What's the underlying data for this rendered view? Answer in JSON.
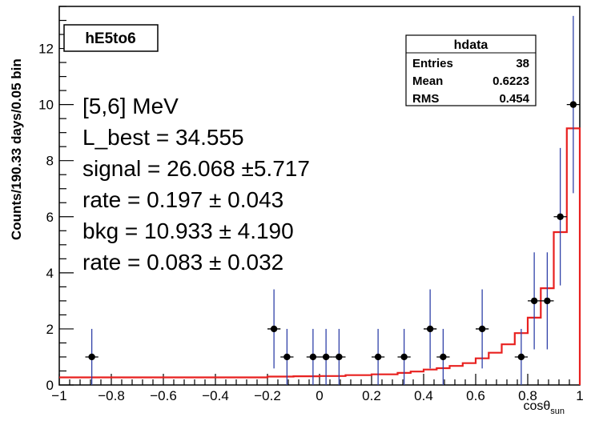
{
  "chart_data": {
    "type": "histogram-with-errorbars",
    "title": "hE5to6",
    "ylabel": "Counts/190.33 days/0.05 bin",
    "xlabel_main": "cosθ",
    "xlabel_sub": "sun",
    "xlim": [
      -1,
      1
    ],
    "ylim": [
      0,
      13.5
    ],
    "x_ticks": [
      -1,
      -0.8,
      -0.6,
      -0.4,
      -0.2,
      0,
      0.2,
      0.4,
      0.6,
      0.8,
      1
    ],
    "x_tick_labels": [
      "−1",
      "−0.8",
      "−0.6",
      "−0.4",
      "−0.2",
      "0",
      "0.2",
      "0.4",
      "0.6",
      "0.8",
      "1"
    ],
    "y_ticks": [
      0,
      2,
      4,
      6,
      8,
      10,
      12
    ],
    "y_tick_labels": [
      "0",
      "2",
      "4",
      "6",
      "8",
      "10",
      "12"
    ],
    "bin_width": 0.05,
    "data_points": [
      {
        "x": -0.875,
        "y": 1,
        "err_low": 1,
        "err_high": 1.0
      },
      {
        "x": -0.175,
        "y": 2,
        "err_low": 1.41,
        "err_high": 1.41
      },
      {
        "x": -0.125,
        "y": 1,
        "err_low": 1,
        "err_high": 1.0
      },
      {
        "x": -0.025,
        "y": 1,
        "err_low": 1,
        "err_high": 1.0
      },
      {
        "x": 0.025,
        "y": 1,
        "err_low": 1,
        "err_high": 1.0
      },
      {
        "x": 0.075,
        "y": 1,
        "err_low": 1,
        "err_high": 1.0
      },
      {
        "x": 0.225,
        "y": 1,
        "err_low": 1,
        "err_high": 1.0
      },
      {
        "x": 0.325,
        "y": 1,
        "err_low": 1,
        "err_high": 1.0
      },
      {
        "x": 0.425,
        "y": 2,
        "err_low": 1.41,
        "err_high": 1.41
      },
      {
        "x": 0.475,
        "y": 1,
        "err_low": 1,
        "err_high": 1.0
      },
      {
        "x": 0.625,
        "y": 2,
        "err_low": 1.41,
        "err_high": 1.41
      },
      {
        "x": 0.775,
        "y": 1,
        "err_low": 1,
        "err_high": 1.0
      },
      {
        "x": 0.825,
        "y": 3,
        "err_low": 1.73,
        "err_high": 1.73
      },
      {
        "x": 0.875,
        "y": 3,
        "err_low": 1.73,
        "err_high": 1.73
      },
      {
        "x": 0.925,
        "y": 6,
        "err_low": 2.45,
        "err_high": 2.45
      },
      {
        "x": 0.975,
        "y": 10,
        "err_low": 3.16,
        "err_high": 3.16
      }
    ],
    "fit_histogram": {
      "edges": [
        -1,
        -0.2,
        -0.1,
        0.0,
        0.1,
        0.2,
        0.3,
        0.35,
        0.4,
        0.45,
        0.5,
        0.55,
        0.6,
        0.65,
        0.7,
        0.75,
        0.8,
        0.85,
        0.9,
        0.95,
        1.0
      ],
      "values": [
        0.27,
        0.3,
        0.31,
        0.32,
        0.35,
        0.38,
        0.43,
        0.48,
        0.55,
        0.6,
        0.68,
        0.78,
        0.95,
        1.15,
        1.45,
        1.85,
        2.4,
        3.45,
        5.45,
        9.15
      ]
    },
    "colors": {
      "fit_line": "#e8201f",
      "error_bar": "#3041a8",
      "marker": "#000000"
    },
    "stats_box": {
      "title": "hdata",
      "rows": [
        {
          "label": "Entries",
          "value": "38"
        },
        {
          "label": "Mean",
          "value": "0.6223"
        },
        {
          "label": "RMS",
          "value": "0.454"
        }
      ]
    },
    "annotations": [
      "[5,6] MeV",
      "L_best = 34.555",
      "signal = 26.068 ±5.717",
      "rate = 0.197  ± 0.043",
      "bkg = 10.933  ± 4.190",
      "rate = 0.083  ± 0.032"
    ]
  }
}
